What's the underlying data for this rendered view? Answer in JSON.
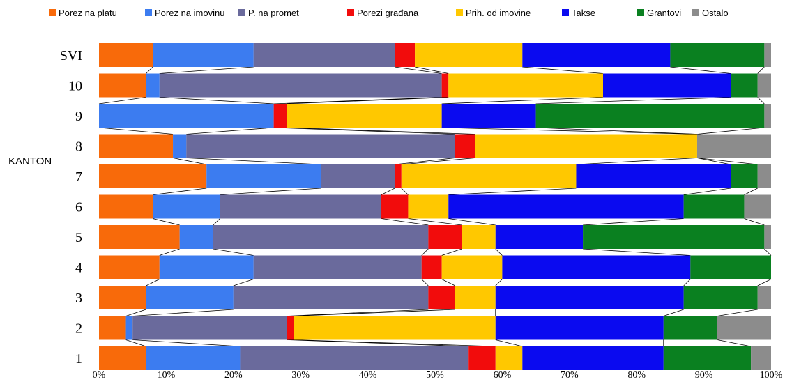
{
  "chart_data": {
    "type": "bar",
    "orientation": "horizontal",
    "stacked": "percent",
    "ylabel": "KANTON",
    "xlabel": "",
    "xlim": [
      0,
      100
    ],
    "x_ticks": [
      "0%",
      "10%",
      "20%",
      "30%",
      "40%",
      "50%",
      "60%",
      "70%",
      "80%",
      "90%",
      "100%"
    ],
    "categories": [
      "SVI",
      "10",
      "9",
      "8",
      "7",
      "6",
      "5",
      "4",
      "3",
      "2",
      "1"
    ],
    "legend_position": "top",
    "series_lines": true,
    "series": [
      {
        "name": "Porez na platu",
        "color": "#F86A0A",
        "values": [
          8,
          7,
          0,
          11,
          16,
          8,
          12,
          9,
          7,
          4,
          7
        ]
      },
      {
        "name": "Porez na  imovinu",
        "color": "#3C7CF0",
        "values": [
          15,
          2,
          26,
          2,
          17,
          10,
          5,
          14,
          13,
          1,
          14
        ]
      },
      {
        "name": "P. na promet",
        "color": "#6A6A9C",
        "values": [
          21,
          42,
          0,
          40,
          11,
          24,
          32,
          25,
          29,
          23,
          34
        ]
      },
      {
        "name": "Porezi građana",
        "color": "#F20C0C",
        "values": [
          3,
          1,
          2,
          3,
          1,
          4,
          5,
          3,
          4,
          1,
          4
        ]
      },
      {
        "name": "Prih. od imovine",
        "color": "#FFC800",
        "values": [
          16,
          23,
          23,
          33,
          26,
          6,
          5,
          9,
          6,
          30,
          4
        ]
      },
      {
        "name": "Takse",
        "color": "#0A0AF0",
        "values": [
          22,
          19,
          14,
          0,
          23,
          35,
          13,
          28,
          28,
          25,
          21
        ]
      },
      {
        "name": "Grantovi",
        "color": "#0A8020",
        "values": [
          14,
          4,
          34,
          0,
          4,
          9,
          27,
          12,
          11,
          8,
          13
        ]
      },
      {
        "name": "Ostalo",
        "color": "#8C8C8C",
        "values": [
          1,
          2,
          1,
          11,
          2,
          4,
          1,
          0,
          2,
          8,
          3
        ]
      }
    ]
  }
}
